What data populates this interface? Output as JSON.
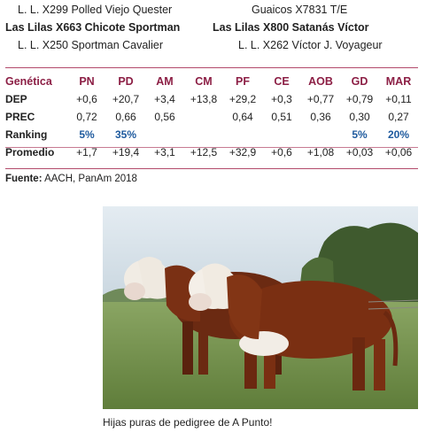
{
  "pedigree": [
    {
      "left": {
        "prefix": "L. L. X299 Polled Viejo Quester",
        "name": ""
      },
      "right": {
        "prefix": "Guaicos X7831 T/E",
        "name": ""
      }
    },
    {
      "left": {
        "prefix": "Las Lilas ",
        "name": "X663 Chicote Sportman"
      },
      "right": {
        "prefix": "Las Lilas ",
        "name": "X800 Satanás Víctor"
      }
    },
    {
      "left": {
        "prefix": "L. L. X250 Sportman Cavalier",
        "name": ""
      },
      "right": {
        "prefix": "L. L. X262 Víctor J. Voyageur",
        "name": ""
      }
    }
  ],
  "table": {
    "header_label": "Genética",
    "columns": [
      "PN",
      "PD",
      "AM",
      "CM",
      "PF",
      "CE",
      "AOB",
      "GD",
      "MAR"
    ],
    "rows": [
      {
        "label": "DEP",
        "values": [
          "+0,6",
          "+20,7",
          "+3,4",
          "+13,8",
          "+29,2",
          "+0,3",
          "+0,77",
          "+0,79",
          "+0,11"
        ]
      },
      {
        "label": "PREC",
        "values": [
          "0,72",
          "0,66",
          "0,56",
          "",
          "0,64",
          "0,51",
          "0,36",
          "0,30",
          "0,27"
        ]
      },
      {
        "label": "Ranking",
        "values": [
          "5%",
          "35%",
          "",
          "",
          "",
          "",
          "",
          "5%",
          "20%"
        ]
      }
    ],
    "average": {
      "label": "Promedio",
      "values": [
        "+1,7",
        "+19,4",
        "+3,1",
        "+12,5",
        "+32,9",
        "+0,6",
        "+1,08",
        "+0,03",
        "+0,06"
      ]
    }
  },
  "source": {
    "label": "Fuente:",
    "text": " AACH, PanAm 2018"
  },
  "photo": {
    "icon": "hereford-heifers-photo"
  },
  "caption": "Hijas puras de pedigree de A Punto!",
  "colors": {
    "accent": "#8c1f45",
    "ranking": "#1e5a9e",
    "rule": "#b24a6b"
  }
}
